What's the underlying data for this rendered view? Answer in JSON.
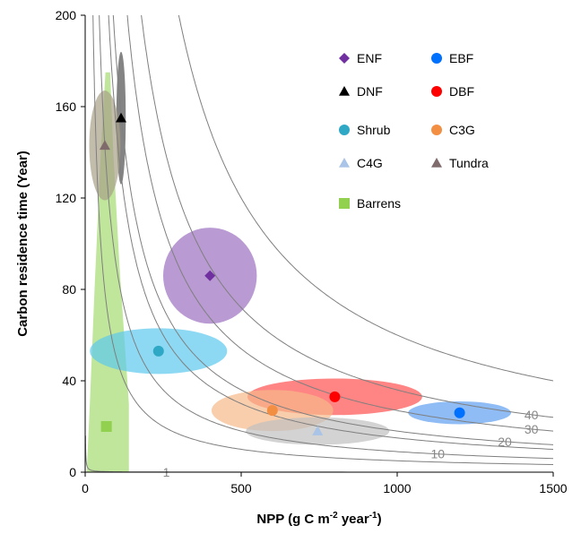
{
  "chart_data": {
    "type": "scatter",
    "xlabel_main": "NPP (g C m",
    "xlabel_sup1": "-2",
    "xlabel_mid": " year",
    "xlabel_sup2": "-1",
    "xlabel_end": ")",
    "ylabel": "Carbon residence time (Year)",
    "xlim": [
      0,
      1500
    ],
    "ylim": [
      0,
      200
    ],
    "x_ticks": [
      "0",
      "500",
      "1000",
      "1500"
    ],
    "y_ticks": [
      "0",
      "40",
      "80",
      "120",
      "160",
      "200"
    ],
    "legend_position": "top-right",
    "isolines": [
      {
        "label": "1",
        "product": 16
      },
      {
        "label": "10",
        "product": 9000
      },
      {
        "label": "20",
        "product": 18000
      },
      {
        "label": "30",
        "product": 27000
      },
      {
        "label": "40",
        "product": 36000
      },
      {
        "label": "",
        "product": 60000
      },
      {
        "label": "",
        "product": 5000
      },
      {
        "label": "",
        "product": 15000
      }
    ],
    "series": [
      {
        "name": "ENF",
        "marker": "diamond",
        "color": "#7030a0",
        "x": 400,
        "y": 86,
        "ellipse": {
          "cx": 400,
          "cy": 86,
          "rx": 150,
          "ry": 21,
          "color": "#9b6fc0"
        }
      },
      {
        "name": "EBF",
        "marker": "circle",
        "color": "#0070ff",
        "x": 1200,
        "y": 26,
        "ellipse": {
          "cx": 1200,
          "cy": 26,
          "rx": 165,
          "ry": 5,
          "color": "#5f9ff0"
        }
      },
      {
        "name": "DNF",
        "marker": "triangle",
        "color": "#000000",
        "x": 115,
        "y": 155,
        "ellipse": {
          "cx": 115,
          "cy": 155,
          "rx": 15,
          "ry": 29,
          "color": "#505050"
        }
      },
      {
        "name": "DBF",
        "marker": "circle",
        "color": "#ff0000",
        "x": 800,
        "y": 33,
        "ellipse": {
          "cx": 800,
          "cy": 33,
          "rx": 280,
          "ry": 8,
          "color": "#ff5050"
        }
      },
      {
        "name": "Shrub",
        "marker": "circle",
        "color": "#2fa8c6",
        "x": 235,
        "y": 53,
        "ellipse": {
          "cx": 235,
          "cy": 53,
          "rx": 220,
          "ry": 10,
          "color": "#5cc9ee"
        }
      },
      {
        "name": "C3G",
        "marker": "circle",
        "color": "#f28f43",
        "x": 600,
        "y": 27,
        "ellipse": {
          "cx": 600,
          "cy": 27,
          "rx": 195,
          "ry": 9,
          "color": "#f6b98a"
        }
      },
      {
        "name": "C4G",
        "marker": "triangle",
        "color": "#a9c4e6",
        "x": 745,
        "y": 18,
        "ellipse": {
          "cx": 745,
          "cy": 18,
          "rx": 230,
          "ry": 6,
          "color": "#c0c0c0"
        }
      },
      {
        "name": "Tundra",
        "marker": "triangle",
        "color": "#7f6a6c",
        "x": 63,
        "y": 143,
        "ellipse": {
          "cx": 63,
          "cy": 143,
          "rx": 50,
          "ry": 24,
          "color": "#a8a088"
        }
      },
      {
        "name": "Barrens",
        "marker": "square",
        "color": "#92d050",
        "x": 68,
        "y": 20
      }
    ],
    "barrens_band": {
      "color": "#a9dd7a",
      "points": [
        [
          5,
          0
        ],
        [
          140,
          0
        ],
        [
          140,
          30
        ],
        [
          110,
          90
        ],
        [
          90,
          140
        ],
        [
          80,
          175
        ],
        [
          65,
          175
        ],
        [
          50,
          140
        ],
        [
          30,
          80
        ],
        [
          15,
          30
        ],
        [
          5,
          0
        ]
      ]
    }
  }
}
